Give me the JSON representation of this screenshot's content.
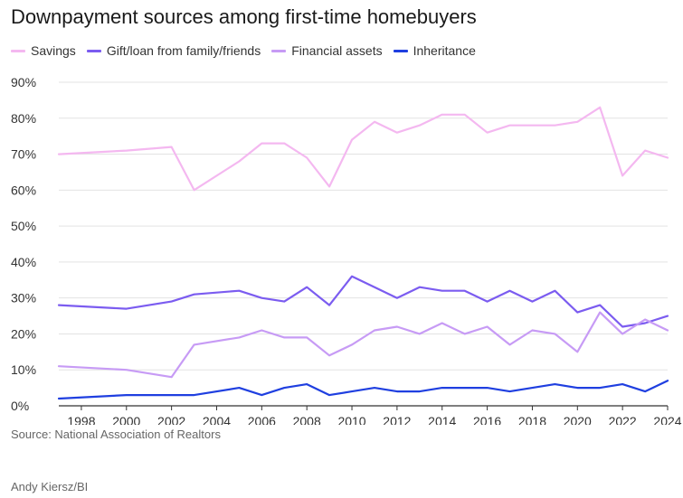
{
  "chart_data": {
    "type": "line",
    "title": "Downpayment sources among first-time homebuyers",
    "xlabel": "",
    "ylabel": "",
    "x": [
      1997,
      2000,
      2002,
      2003,
      2005,
      2006,
      2007,
      2008,
      2009,
      2010,
      2011,
      2012,
      2013,
      2014,
      2015,
      2016,
      2017,
      2018,
      2019,
      2020,
      2021,
      2022,
      2023,
      2024
    ],
    "xlim": [
      1997,
      2024
    ],
    "ylim": [
      0,
      90
    ],
    "x_ticks": [
      "1998",
      "2000",
      "2002",
      "2004",
      "2006",
      "2008",
      "2010",
      "2012",
      "2014",
      "2016",
      "2018",
      "2020",
      "2022",
      "2024"
    ],
    "y_ticks": [
      "0%",
      "10%",
      "20%",
      "30%",
      "40%",
      "50%",
      "60%",
      "70%",
      "80%",
      "90%"
    ],
    "grid": "horizontal",
    "legend": "top-left",
    "series": [
      {
        "name": "Savings",
        "color": "#f4b8f0",
        "values": [
          70,
          71,
          72,
          60,
          68,
          73,
          73,
          69,
          61,
          74,
          79,
          76,
          78,
          81,
          81,
          76,
          78,
          78,
          78,
          79,
          83,
          64,
          71,
          69
        ]
      },
      {
        "name": "Gift/loan from family/friends",
        "color": "#7b5cf0",
        "values": [
          28,
          27,
          29,
          31,
          32,
          30,
          29,
          33,
          28,
          36,
          33,
          30,
          33,
          32,
          32,
          29,
          32,
          29,
          32,
          26,
          28,
          22,
          23,
          25
        ]
      },
      {
        "name": "Financial assets",
        "color": "#c79bf5",
        "values": [
          11,
          10,
          8,
          17,
          19,
          21,
          19,
          19,
          14,
          17,
          21,
          22,
          20,
          23,
          20,
          22,
          17,
          21,
          20,
          15,
          26,
          20,
          24,
          21
        ]
      },
      {
        "name": "Inheritance",
        "color": "#1f3fe0",
        "values": [
          2,
          3,
          3,
          3,
          5,
          3,
          5,
          6,
          3,
          4,
          5,
          4,
          4,
          5,
          5,
          5,
          4,
          5,
          6,
          5,
          5,
          6,
          4,
          7
        ]
      }
    ]
  },
  "footer": {
    "source": "Source: National Association of Realtors",
    "credit": "Andy Kiersz/BI"
  }
}
